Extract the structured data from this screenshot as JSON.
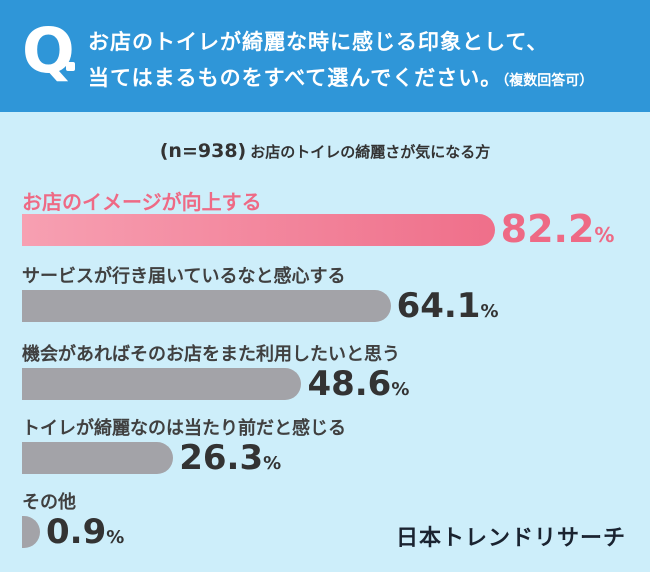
{
  "question": {
    "mark": "Q",
    "line1": "お店のトイレが綺麗な時に感じる印象として、",
    "line2": "当てはまるものをすべて選んでください。",
    "note": "（複数回答可）"
  },
  "sample": {
    "n": "(n=938)",
    "target": "お店のトイレの綺麗さが気になる方"
  },
  "colors": {
    "header": "#2f96d8",
    "background": "#cdeefa",
    "highlight_bar_start": "#f7a0b2",
    "highlight_bar_end": "#ef6f8a",
    "highlight_text": "#ee6a85",
    "gray_bar": "#a3a3a8"
  },
  "chart_data": {
    "type": "bar",
    "orientation": "horizontal",
    "unit": "%",
    "xlim": [
      0,
      100
    ],
    "grid": false,
    "categories": [
      "お店のイメージが向上する",
      "サービスが行き届いているなと感心する",
      "機会があればそのお店をまた利用したいと思う",
      "トイレが綺麗なのは当たり前だと感じる",
      "その他"
    ],
    "values": [
      82.2,
      64.1,
      48.6,
      26.3,
      0.9
    ],
    "value_labels": [
      "82.2",
      "64.1",
      "48.6",
      "26.3",
      "0.9"
    ],
    "pct_symbol": "%",
    "highlight_index": 0
  },
  "brand": "日本トレンドリサーチ"
}
